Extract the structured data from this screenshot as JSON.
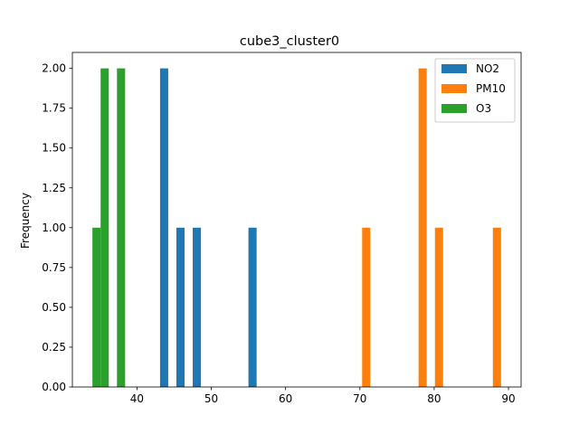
{
  "chart_data": {
    "type": "histogram",
    "title": "cube3_cluster0",
    "xlabel": "",
    "ylabel": "Frequency",
    "xlim": [
      31.3,
      91.7
    ],
    "ylim": [
      0,
      2.1
    ],
    "xticks": [
      40,
      50,
      60,
      70,
      80,
      90
    ],
    "yticks": [
      0.0,
      0.25,
      0.5,
      0.75,
      1.0,
      1.25,
      1.5,
      1.75,
      2.0
    ],
    "ytick_labels": [
      "0.00",
      "0.25",
      "0.50",
      "0.75",
      "1.00",
      "1.25",
      "1.50",
      "1.75",
      "2.00"
    ],
    "grid": false,
    "legend_position": "top-right",
    "series": [
      {
        "name": "NO2",
        "color": "#1f77b4",
        "bars": [
          {
            "x0": 43.1,
            "x1": 44.2,
            "count": 2
          },
          {
            "x0": 45.3,
            "x1": 46.4,
            "count": 1
          },
          {
            "x0": 47.5,
            "x1": 48.6,
            "count": 1
          },
          {
            "x0": 55.0,
            "x1": 56.1,
            "count": 1
          }
        ]
      },
      {
        "name": "PM10",
        "color": "#ff7f0e",
        "bars": [
          {
            "x0": 70.3,
            "x1": 71.4,
            "count": 1
          },
          {
            "x0": 77.9,
            "x1": 79.0,
            "count": 2
          },
          {
            "x0": 80.1,
            "x1": 81.2,
            "count": 1
          },
          {
            "x0": 87.9,
            "x1": 89.0,
            "count": 1
          }
        ]
      },
      {
        "name": "O3",
        "color": "#2ca02c",
        "bars": [
          {
            "x0": 34.0,
            "x1": 35.1,
            "count": 1
          },
          {
            "x0": 35.1,
            "x1": 36.2,
            "count": 2
          },
          {
            "x0": 37.3,
            "x1": 38.4,
            "count": 2
          }
        ]
      }
    ]
  }
}
